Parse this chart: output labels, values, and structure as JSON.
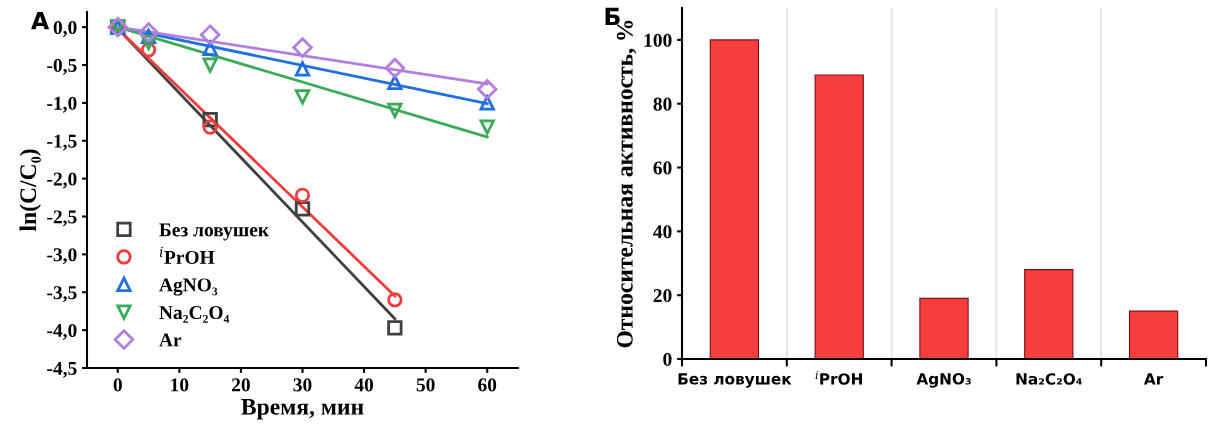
{
  "chart_data": [
    {
      "type": "scatter",
      "title": "А",
      "xlabel": "Время, мин",
      "ylabel": "ln(C/C₀)",
      "xlim": [
        -5,
        65
      ],
      "xticks": [
        0,
        10,
        20,
        30,
        40,
        50,
        60
      ],
      "ylim": [
        -4.5,
        0.2
      ],
      "yticks": [
        {
          "value": 0,
          "label": "0,0"
        },
        {
          "value": -0.5,
          "label": "-0,5"
        },
        {
          "value": -1,
          "label": "-1,0"
        },
        {
          "value": -1.5,
          "label": "-1,5"
        },
        {
          "value": -2,
          "label": "-2,0"
        },
        {
          "value": -2.5,
          "label": "-2,5"
        },
        {
          "value": -3,
          "label": "-3,0"
        },
        {
          "value": -3.5,
          "label": "-3,5"
        },
        {
          "value": -4,
          "label": "-4,0"
        },
        {
          "value": -4.5,
          "label": "-4,5"
        }
      ],
      "grid": false,
      "legend": "bottom left",
      "series": [
        {
          "name": "Без ловушек",
          "color": "#404040",
          "marker": "square",
          "x": [
            0,
            15,
            30,
            45
          ],
          "values": [
            0,
            -1.22,
            -2.4,
            -3.97
          ]
        },
        {
          "name": "$^{i}$PrOH",
          "color": "#f03c3c",
          "marker": "circle",
          "x": [
            0,
            5,
            15,
            30,
            45
          ],
          "values": [
            0,
            -0.3,
            -1.32,
            -2.22,
            -3.6
          ]
        },
        {
          "name": "AgNO₃",
          "color": "#1f6fe0",
          "marker": "triangle",
          "x": [
            0,
            5,
            15,
            30,
            45,
            60
          ],
          "values": [
            0,
            -0.12,
            -0.28,
            -0.55,
            -0.73,
            -1.0
          ]
        },
        {
          "name": "Na₂C₂O₄",
          "color": "#3aaa5a",
          "marker": "triangle_down",
          "x": [
            0,
            5,
            15,
            30,
            45,
            60
          ],
          "values": [
            0,
            -0.2,
            -0.5,
            -0.92,
            -1.1,
            -1.32
          ]
        },
        {
          "name": "Ar",
          "color": "#b07fe0",
          "marker": "diamond",
          "x": [
            0,
            5,
            15,
            30,
            45,
            60
          ],
          "values": [
            0,
            -0.07,
            -0.1,
            -0.27,
            -0.54,
            -0.82
          ]
        },
        {
          "type": "line",
          "color": "#404040",
          "x": [
            0,
            45
          ],
          "values": [
            -0.02,
            -3.85
          ]
        },
        {
          "type": "line",
          "color": "#f03c3c",
          "x": [
            0,
            45
          ],
          "values": [
            -0.02,
            -3.55
          ]
        },
        {
          "type": "line",
          "color": "#1f6fe0",
          "x": [
            0,
            60
          ],
          "values": [
            0,
            -1.01
          ]
        },
        {
          "type": "line",
          "color": "#3aaa5a",
          "x": [
            0,
            60
          ],
          "values": [
            0,
            -1.45
          ]
        },
        {
          "type": "line",
          "color": "#b07fe0",
          "x": [
            0,
            60
          ],
          "values": [
            0,
            -0.75
          ]
        }
      ]
    },
    {
      "type": "bar",
      "title": "Б",
      "ylabel": "Относительная активность, %",
      "categories": [
        "Без ловушек",
        "$^{i}$PrOH",
        "AgNO₃",
        "Na₂C₂O₄",
        "Ar"
      ],
      "values": [
        100,
        89,
        19,
        28,
        15
      ],
      "color": "#f73e3e",
      "ylim": [
        0,
        110
      ],
      "yticks": [
        0,
        20,
        40,
        60,
        80,
        100
      ],
      "grid": "x"
    }
  ]
}
